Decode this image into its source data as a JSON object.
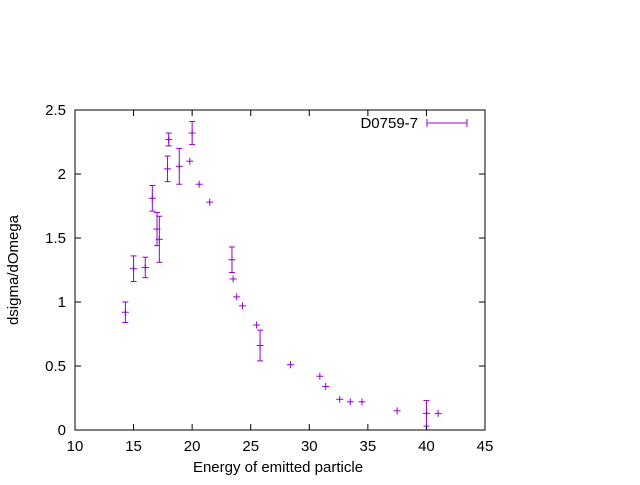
{
  "chart_data": {
    "type": "scatter",
    "xlabel": "Energy of emitted particle",
    "ylabel": "dsigma/dOmega",
    "xlim": [
      10,
      45
    ],
    "ylim": [
      0,
      2.5
    ],
    "x_ticks": [
      "10",
      "15",
      "20",
      "25",
      "30",
      "35",
      "40",
      "45"
    ],
    "y_ticks": [
      "0",
      "0.5",
      "1",
      "1.5",
      "2",
      "2.5"
    ],
    "grid": false,
    "legend_position": "top-right",
    "series_color": "#9400d3",
    "series": [
      {
        "name": "D0759-7",
        "points": [
          {
            "x": 14.3,
            "y": 0.92,
            "err": 0.08
          },
          {
            "x": 15.0,
            "y": 1.26,
            "err": 0.1
          },
          {
            "x": 16.0,
            "y": 1.27,
            "err": 0.08
          },
          {
            "x": 16.6,
            "y": 1.81,
            "err": 0.1
          },
          {
            "x": 17.0,
            "y": 1.57,
            "err": 0.13
          },
          {
            "x": 17.2,
            "y": 1.49,
            "err": 0.18
          },
          {
            "x": 17.9,
            "y": 2.04,
            "err": 0.1
          },
          {
            "x": 18.0,
            "y": 2.27,
            "err": 0.05
          },
          {
            "x": 18.9,
            "y": 2.06,
            "err": 0.14
          },
          {
            "x": 19.8,
            "y": 2.1,
            "err": 0.0
          },
          {
            "x": 20.0,
            "y": 2.32,
            "err": 0.09
          },
          {
            "x": 20.6,
            "y": 1.92,
            "err": 0.0
          },
          {
            "x": 21.5,
            "y": 1.78,
            "err": 0.0
          },
          {
            "x": 23.4,
            "y": 1.33,
            "err": 0.1
          },
          {
            "x": 23.5,
            "y": 1.18,
            "err": 0.0
          },
          {
            "x": 23.8,
            "y": 1.04,
            "err": 0.0
          },
          {
            "x": 24.3,
            "y": 0.97,
            "err": 0.0
          },
          {
            "x": 25.5,
            "y": 0.82,
            "err": 0.0
          },
          {
            "x": 25.8,
            "y": 0.66,
            "err": 0.12
          },
          {
            "x": 28.4,
            "y": 0.51,
            "err": 0.0
          },
          {
            "x": 30.9,
            "y": 0.42,
            "err": 0.0
          },
          {
            "x": 31.4,
            "y": 0.34,
            "err": 0.0
          },
          {
            "x": 32.6,
            "y": 0.24,
            "err": 0.0
          },
          {
            "x": 33.5,
            "y": 0.22,
            "err": 0.0
          },
          {
            "x": 34.5,
            "y": 0.22,
            "err": 0.0
          },
          {
            "x": 37.5,
            "y": 0.15,
            "err": 0.0
          },
          {
            "x": 40.0,
            "y": 0.13,
            "err": 0.1
          },
          {
            "x": 41.0,
            "y": 0.13,
            "err": 0.0
          }
        ]
      }
    ]
  }
}
